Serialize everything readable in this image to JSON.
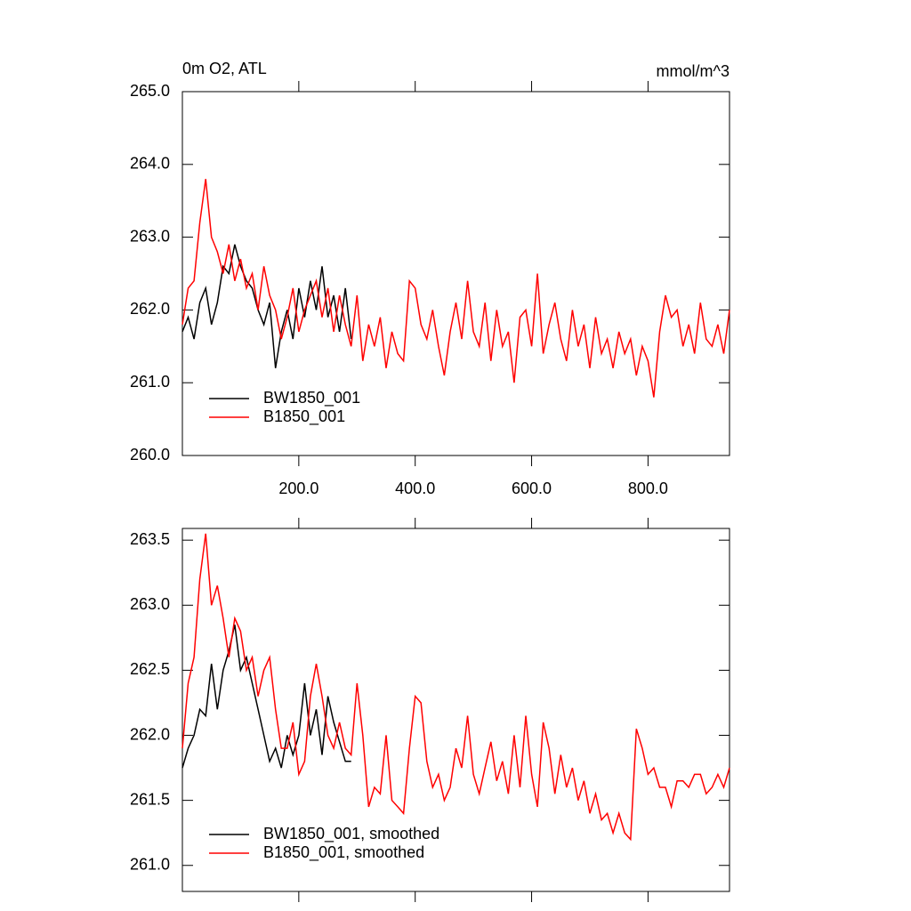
{
  "chart_data": [
    {
      "type": "line",
      "title": "0m O2, ATL",
      "units": "mmol/m^3",
      "xlim": [
        0,
        940
      ],
      "ylim": [
        260,
        265
      ],
      "xticks": [
        {
          "value": 200,
          "label": "200.0"
        },
        {
          "value": 400,
          "label": "400.0"
        },
        {
          "value": 600,
          "label": "600.0"
        },
        {
          "value": 800,
          "label": "800.0"
        }
      ],
      "yticks": [
        {
          "value": 260,
          "label": "260.0"
        },
        {
          "value": 261,
          "label": "261.0"
        },
        {
          "value": 262,
          "label": "262.0"
        },
        {
          "value": 263,
          "label": "263.0"
        },
        {
          "value": 264,
          "label": "264.0"
        },
        {
          "value": 265,
          "label": "265.0"
        }
      ],
      "legend": "lower left",
      "series": [
        {
          "name": "BW1850_001",
          "color": "#000000",
          "x": [
            0,
            10,
            20,
            30,
            40,
            50,
            60,
            70,
            80,
            90,
            100,
            110,
            120,
            130,
            140,
            150,
            160,
            170,
            180,
            190,
            200,
            210,
            220,
            230,
            240,
            250,
            260,
            270,
            280,
            290
          ],
          "values": [
            261.7,
            261.9,
            261.6,
            262.1,
            262.3,
            261.8,
            262.1,
            262.6,
            262.5,
            262.9,
            262.6,
            262.4,
            262.3,
            262.0,
            261.8,
            262.1,
            261.2,
            261.7,
            262.0,
            261.6,
            262.3,
            261.9,
            262.4,
            262.0,
            262.6,
            261.9,
            262.2,
            261.7,
            262.3,
            261.6
          ]
        },
        {
          "name": "B1850_001",
          "color": "#ff0000",
          "x": [
            0,
            10,
            20,
            30,
            40,
            50,
            60,
            70,
            80,
            90,
            100,
            110,
            120,
            130,
            140,
            150,
            160,
            170,
            180,
            190,
            200,
            210,
            220,
            230,
            240,
            250,
            260,
            270,
            280,
            290,
            300,
            310,
            320,
            330,
            340,
            350,
            360,
            370,
            380,
            390,
            400,
            410,
            420,
            430,
            440,
            450,
            460,
            470,
            480,
            490,
            500,
            510,
            520,
            530,
            540,
            550,
            560,
            570,
            580,
            590,
            600,
            610,
            620,
            630,
            640,
            650,
            660,
            670,
            680,
            690,
            700,
            710,
            720,
            730,
            740,
            750,
            760,
            770,
            780,
            790,
            800,
            810,
            820,
            830,
            840,
            850,
            860,
            870,
            880,
            890,
            900,
            910,
            920,
            930,
            940
          ],
          "values": [
            261.8,
            262.3,
            262.4,
            263.2,
            263.8,
            263.0,
            262.8,
            262.5,
            262.9,
            262.4,
            262.7,
            262.3,
            262.5,
            262.0,
            262.6,
            262.2,
            262.0,
            261.6,
            261.9,
            262.3,
            261.7,
            262.0,
            262.2,
            262.4,
            261.9,
            262.3,
            261.7,
            262.2,
            261.8,
            261.5,
            262.2,
            261.3,
            261.8,
            261.5,
            261.9,
            261.2,
            261.7,
            261.4,
            261.3,
            262.4,
            262.3,
            261.8,
            261.6,
            262.0,
            261.5,
            261.1,
            261.7,
            262.1,
            261.6,
            262.4,
            261.7,
            261.5,
            262.1,
            261.3,
            262.0,
            261.5,
            261.7,
            261.0,
            261.9,
            262.0,
            261.5,
            262.5,
            261.4,
            261.8,
            262.1,
            261.6,
            261.3,
            262.0,
            261.5,
            261.8,
            261.2,
            261.9,
            261.4,
            261.6,
            261.2,
            261.7,
            261.4,
            261.6,
            261.1,
            261.5,
            261.3,
            260.8,
            261.7,
            262.2,
            261.9,
            262.0,
            261.5,
            261.8,
            261.4,
            262.1,
            261.6,
            261.5,
            261.8,
            261.4,
            262.0
          ]
        }
      ]
    },
    {
      "type": "line",
      "xlim": [
        0,
        940
      ],
      "ylim": [
        260.8,
        263.59
      ],
      "yticks": [
        {
          "value": 261,
          "label": "261.0"
        },
        261.5,
        {
          "value": 262,
          "label": "262.0"
        },
        262.5,
        {
          "value": 263,
          "label": "263.0"
        },
        263.5
      ],
      "legend": "lower left",
      "series": [
        {
          "name": "BW1850_001, smoothed",
          "color": "#000000",
          "x": [
            0,
            10,
            20,
            30,
            40,
            50,
            60,
            70,
            80,
            90,
            100,
            110,
            120,
            130,
            140,
            150,
            160,
            170,
            180,
            190,
            200,
            210,
            220,
            230,
            240,
            250,
            260,
            270,
            280,
            290
          ],
          "values": [
            261.75,
            261.9,
            262.0,
            262.2,
            262.15,
            262.55,
            262.2,
            262.5,
            262.65,
            262.85,
            262.5,
            262.6,
            262.4,
            262.2,
            262.0,
            261.8,
            261.9,
            261.75,
            262.0,
            261.85,
            262.0,
            262.4,
            262.0,
            262.2,
            261.85,
            262.3,
            262.1,
            261.95,
            261.8,
            261.8
          ]
        },
        {
          "name": "B1850_001, smoothed",
          "color": "#ff0000",
          "x": [
            0,
            10,
            20,
            30,
            40,
            50,
            60,
            70,
            80,
            90,
            100,
            110,
            120,
            130,
            140,
            150,
            160,
            170,
            180,
            190,
            200,
            210,
            220,
            230,
            240,
            250,
            260,
            270,
            280,
            290,
            300,
            310,
            320,
            330,
            340,
            350,
            360,
            370,
            380,
            390,
            400,
            410,
            420,
            430,
            440,
            450,
            460,
            470,
            480,
            490,
            500,
            510,
            520,
            530,
            540,
            550,
            560,
            570,
            580,
            590,
            600,
            610,
            620,
            630,
            640,
            650,
            660,
            670,
            680,
            690,
            700,
            710,
            720,
            730,
            740,
            750,
            760,
            770,
            780,
            790,
            800,
            810,
            820,
            830,
            840,
            850,
            860,
            870,
            880,
            890,
            900,
            910,
            920,
            930,
            940
          ],
          "values": [
            261.9,
            262.4,
            262.6,
            263.2,
            263.55,
            263.0,
            263.15,
            262.9,
            262.6,
            262.9,
            262.8,
            262.5,
            262.6,
            262.3,
            262.5,
            262.6,
            262.2,
            261.9,
            261.9,
            262.1,
            261.7,
            261.8,
            262.3,
            262.55,
            262.3,
            262.0,
            261.9,
            262.1,
            261.9,
            261.85,
            262.4,
            262.0,
            261.45,
            261.6,
            261.55,
            262.0,
            261.5,
            261.45,
            261.4,
            261.9,
            262.3,
            262.25,
            261.8,
            261.6,
            261.7,
            261.5,
            261.6,
            261.9,
            261.75,
            262.15,
            261.7,
            261.55,
            261.75,
            261.95,
            261.65,
            261.8,
            261.55,
            262.0,
            261.6,
            262.15,
            261.7,
            261.45,
            262.1,
            261.9,
            261.55,
            261.85,
            261.6,
            261.75,
            261.5,
            261.65,
            261.4,
            261.55,
            261.35,
            261.4,
            261.25,
            261.4,
            261.25,
            261.2,
            262.05,
            261.9,
            261.7,
            261.75,
            261.6,
            261.6,
            261.45,
            261.65,
            261.65,
            261.6,
            261.7,
            261.7,
            261.55,
            261.6,
            261.7,
            261.6,
            261.75
          ]
        }
      ]
    }
  ]
}
